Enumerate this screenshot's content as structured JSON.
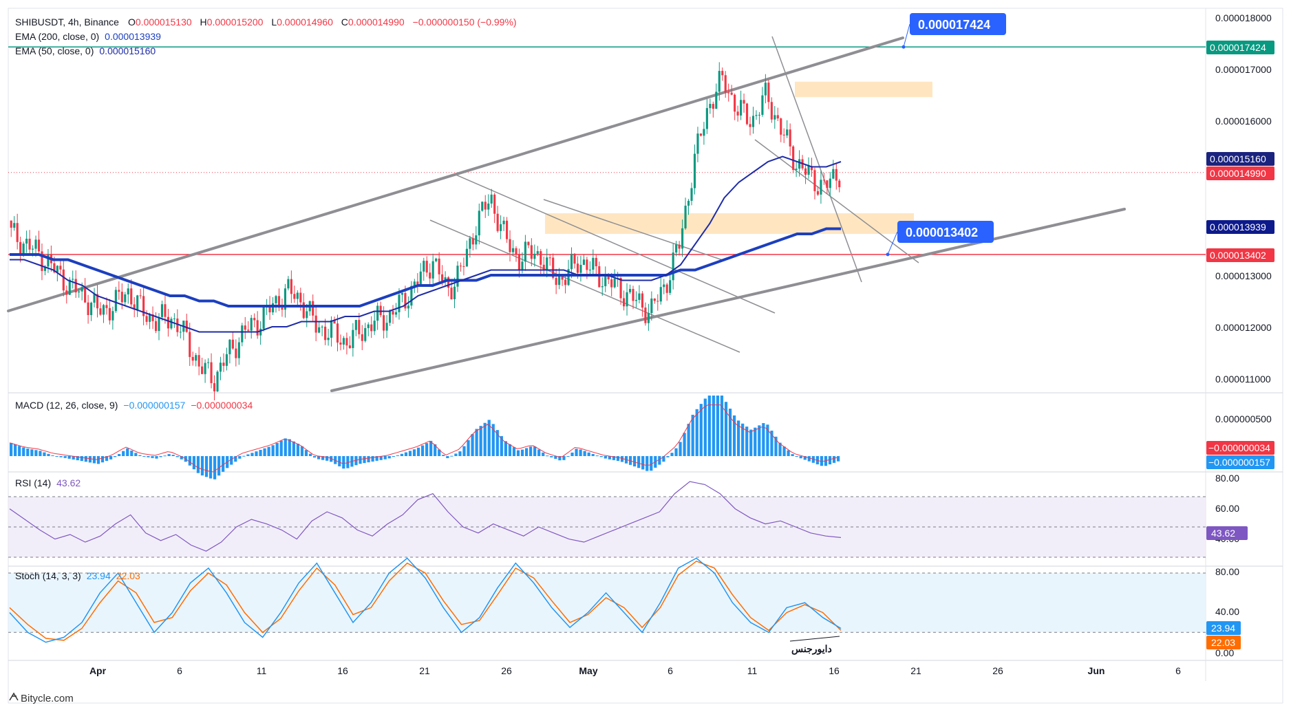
{
  "header": {
    "symbol": "SHIBUSDT, 4h, Binance",
    "ohlc": [
      {
        "k": "O",
        "v": "0.000015130"
      },
      {
        "k": "H",
        "v": "0.000015200"
      },
      {
        "k": "L",
        "v": "0.000014960"
      },
      {
        "k": "C",
        "v": "0.000014990"
      }
    ],
    "change": "−0.000000150 (−0.99%)",
    "ema200_label": "EMA (200, close, 0)",
    "ema200_value": "0.000013939",
    "ema50_label": "EMA (50, close, 0)",
    "ema50_value": "0.000015160"
  },
  "price_axis": {
    "ticks": [
      "0.000018000",
      "0.000017000",
      "0.000016000",
      "0.000013000",
      "0.000012000",
      "0.000011000"
    ],
    "tags": [
      {
        "text": "0.000017424",
        "color": "#089981"
      },
      {
        "text": "0.000015160",
        "color": "#1a237e"
      },
      {
        "text": "0.000014990",
        "color": "#f23645"
      },
      {
        "text": "0.000013939",
        "color": "#0d1a8c"
      },
      {
        "text": "0.000013402",
        "color": "#f23645"
      }
    ]
  },
  "callouts": [
    "0.000017424",
    "0.000013402"
  ],
  "macd": {
    "label": "MACD (12, 26, close, 9)",
    "v1": "−0.000000157",
    "v2": "−0.000000034",
    "tick": "0.000000500",
    "tags": [
      {
        "text": "−0.000000034",
        "color": "#f23645"
      },
      {
        "text": "−0.000000157",
        "color": "#2196f3"
      }
    ]
  },
  "rsi": {
    "label": "RSI (14)",
    "value": "43.62",
    "ticks": [
      "80.00",
      "60.00",
      "40.00"
    ],
    "tag": "43.62"
  },
  "stoch": {
    "label": "Stoch (14, 3, 3)",
    "k": "23.94",
    "d": "22.03",
    "ticks": [
      "80.00",
      "40.00",
      "0.00"
    ],
    "tags": [
      {
        "text": "23.94",
        "color": "#2196f3"
      },
      {
        "text": "22.03",
        "color": "#ff6d00"
      }
    ]
  },
  "annotation": "دایورجنس",
  "time_axis": [
    "Apr",
    "6",
    "11",
    "16",
    "21",
    "26",
    "May",
    "6",
    "11",
    "16",
    "21",
    "26",
    "Jun",
    "6"
  ],
  "watermark": "Bitycle.com",
  "colors": {
    "up": "#089981",
    "down": "#f23645",
    "ema50": "#1e2ca8",
    "ema200": "#1c3fbf",
    "channel": "#8e8e93",
    "zone": "#ffe0b2",
    "rsi_line": "#7e57c2",
    "stoch_k": "#2196f3",
    "stoch_d": "#ff6d00",
    "level_green": "#089981",
    "level_red": "#f23645"
  },
  "chart_data": {
    "type": "candlestick",
    "symbol": "SHIBUSDT",
    "interval": "4h",
    "x_start": "2024-03-28",
    "y_range": [
      1.08e-05,
      1.83e-05
    ],
    "last_close": 1.499e-05,
    "close_series": [
      1.38e-05,
      1.36e-05,
      1.34e-05,
      1.31e-05,
      1.28e-05,
      1.26e-05,
      1.23e-05,
      1.24e-05,
      1.27e-05,
      1.23e-05,
      1.21e-05,
      1.22e-05,
      1.18e-05,
      1.12e-05,
      1.1e-05,
      1.15e-05,
      1.19e-05,
      1.21e-05,
      1.24e-05,
      1.27e-05,
      1.25e-05,
      1.2e-05,
      1.19e-05,
      1.17e-05,
      1.19e-05,
      1.21e-05,
      1.22e-05,
      1.25e-05,
      1.29e-05,
      1.33e-05,
      1.27e-05,
      1.31e-05,
      1.4e-05,
      1.45e-05,
      1.37e-05,
      1.33e-05,
      1.35e-05,
      1.31e-05,
      1.29e-05,
      1.33e-05,
      1.31e-05,
      1.29e-05,
      1.27e-05,
      1.25e-05,
      1.23e-05,
      1.28e-05,
      1.36e-05,
      1.52e-05,
      1.63e-05,
      1.68e-05,
      1.62e-05,
      1.6e-05,
      1.65e-05,
      1.58e-05,
      1.52e-05,
      1.49e-05,
      1.47e-05,
      1.5e-05
    ],
    "ema50_series": [
      1.33e-05,
      1.33e-05,
      1.32e-05,
      1.31e-05,
      1.29e-05,
      1.28e-05,
      1.26e-05,
      1.25e-05,
      1.24e-05,
      1.23e-05,
      1.22e-05,
      1.21e-05,
      1.2e-05,
      1.19e-05,
      1.19e-05,
      1.19e-05,
      1.19e-05,
      1.19e-05,
      1.2e-05,
      1.2e-05,
      1.21e-05,
      1.21e-05,
      1.21e-05,
      1.22e-05,
      1.22e-05,
      1.23e-05,
      1.23e-05,
      1.24e-05,
      1.26e-05,
      1.27e-05,
      1.28e-05,
      1.29e-05,
      1.3e-05,
      1.31e-05,
      1.31e-05,
      1.31e-05,
      1.31e-05,
      1.31e-05,
      1.31e-05,
      1.3e-05,
      1.3e-05,
      1.3e-05,
      1.29e-05,
      1.29e-05,
      1.29e-05,
      1.3e-05,
      1.32e-05,
      1.36e-05,
      1.4e-05,
      1.45e-05,
      1.48e-05,
      1.5e-05,
      1.52e-05,
      1.53e-05,
      1.52e-05,
      1.51e-05,
      1.51e-05,
      1.52e-05
    ],
    "ema200_series": [
      1.34e-05,
      1.34e-05,
      1.34e-05,
      1.33e-05,
      1.33e-05,
      1.32e-05,
      1.31e-05,
      1.3e-05,
      1.29e-05,
      1.28e-05,
      1.27e-05,
      1.26e-05,
      1.26e-05,
      1.25e-05,
      1.25e-05,
      1.24e-05,
      1.24e-05,
      1.24e-05,
      1.24e-05,
      1.24e-05,
      1.24e-05,
      1.24e-05,
      1.24e-05,
      1.24e-05,
      1.24e-05,
      1.25e-05,
      1.26e-05,
      1.27e-05,
      1.28e-05,
      1.28e-05,
      1.29e-05,
      1.29e-05,
      1.29e-05,
      1.3e-05,
      1.3e-05,
      1.3e-05,
      1.3e-05,
      1.3e-05,
      1.3e-05,
      1.3e-05,
      1.3e-05,
      1.3e-05,
      1.3e-05,
      1.3e-05,
      1.3e-05,
      1.3e-05,
      1.31e-05,
      1.31e-05,
      1.32e-05,
      1.33e-05,
      1.34e-05,
      1.35e-05,
      1.36e-05,
      1.37e-05,
      1.38e-05,
      1.38e-05,
      1.39e-05,
      1.39e-05
    ],
    "rsi_series": [
      62,
      55,
      48,
      42,
      45,
      40,
      44,
      52,
      58,
      46,
      41,
      45,
      38,
      34,
      40,
      50,
      55,
      52,
      48,
      42,
      54,
      60,
      56,
      48,
      44,
      52,
      58,
      68,
      72,
      60,
      50,
      46,
      52,
      48,
      44,
      50,
      46,
      42,
      40,
      44,
      48,
      52,
      56,
      60,
      72,
      80,
      78,
      72,
      62,
      56,
      52,
      54,
      50,
      46,
      44,
      43
    ],
    "stoch_k_series": [
      40,
      20,
      10,
      15,
      30,
      60,
      80,
      50,
      20,
      40,
      70,
      85,
      60,
      30,
      15,
      40,
      70,
      90,
      60,
      30,
      50,
      80,
      95,
      75,
      45,
      20,
      35,
      65,
      90,
      70,
      45,
      25,
      40,
      60,
      40,
      20,
      50,
      85,
      95,
      80,
      50,
      30,
      20,
      45,
      50,
      35,
      24
    ],
    "stoch_d_series": [
      45,
      28,
      14,
      12,
      24,
      50,
      72,
      60,
      30,
      35,
      62,
      80,
      68,
      40,
      20,
      34,
      62,
      85,
      68,
      38,
      45,
      72,
      90,
      80,
      52,
      28,
      32,
      58,
      85,
      75,
      52,
      30,
      38,
      55,
      45,
      25,
      45,
      78,
      92,
      85,
      58,
      35,
      22,
      40,
      48,
      40,
      22
    ],
    "horizontal_levels": [
      1.7424e-05,
      1.3402e-05
    ],
    "ema200_last": 1.3939e-05,
    "ema50_last": 1.516e-05
  }
}
